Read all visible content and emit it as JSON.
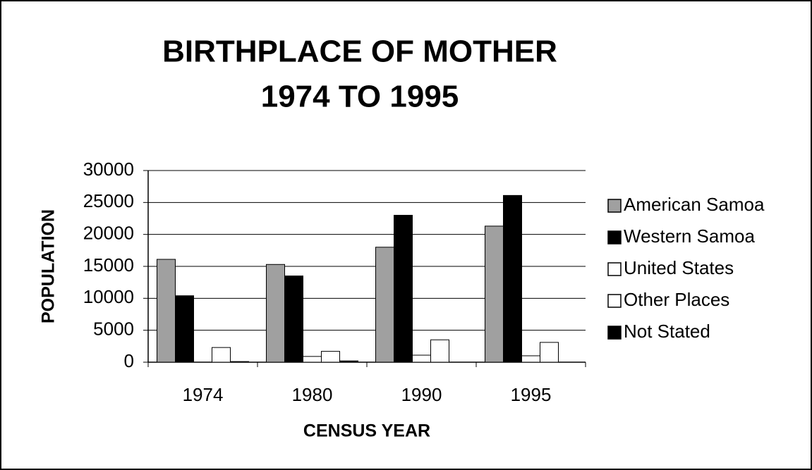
{
  "chart_data": {
    "type": "bar",
    "title": "BIRTHPLACE OF MOTHER",
    "subtitle": "1974 TO 1995",
    "x_label": "CENSUS YEAR",
    "y_label": "POPULATION",
    "categories": [
      "1974",
      "1980",
      "1990",
      "1995"
    ],
    "series": [
      {
        "name": "American Samoa",
        "color": "#a0a0a0",
        "values": [
          16100,
          15300,
          18000,
          21300
        ]
      },
      {
        "name": "Western Samoa",
        "color": "#000000",
        "values": [
          10400,
          13500,
          23000,
          26100
        ]
      },
      {
        "name": "United States",
        "color": "#ffffff",
        "values": [
          0,
          900,
          1100,
          1000
        ]
      },
      {
        "name": "Other Places",
        "color": "#ffffff",
        "values": [
          2300,
          1700,
          3500,
          3100
        ]
      },
      {
        "name": "Not Stated",
        "color": "#000000",
        "values": [
          100,
          200,
          0,
          0
        ]
      }
    ],
    "ylim": [
      0,
      30000
    ],
    "yticks": [
      0,
      5000,
      10000,
      15000,
      20000,
      25000,
      30000
    ],
    "grid": true,
    "legend": "right"
  }
}
